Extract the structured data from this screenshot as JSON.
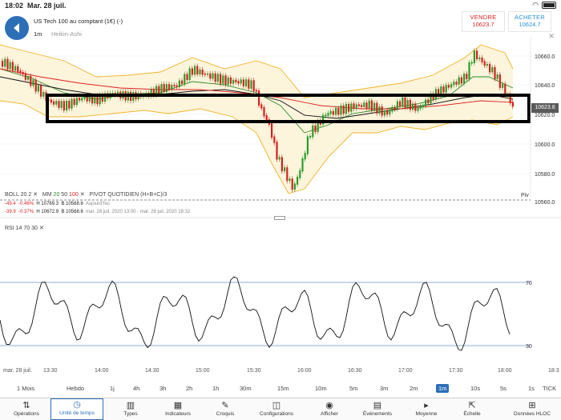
{
  "status": {
    "time": "18:02",
    "date": "Mar. 28 juil."
  },
  "instrument": {
    "name": "US Tech 100 au comptant (1€) (-)",
    "timeframe": "1m",
    "chart_type": "Heikin-Ashi"
  },
  "trade": {
    "sell_label": "VENDRE",
    "sell_price": "10623.7",
    "buy_label": "ACHETER",
    "buy_price": "10624.7"
  },
  "price_axis": {
    "labels": [
      "10660.0",
      "10640.0",
      "10620.0",
      "10600.0",
      "10580.0",
      "10560.0"
    ],
    "current": "10623.8",
    "pivot_label": "Piv"
  },
  "indicators": {
    "boll": "BOLL",
    "boll_p1": "20",
    "boll_p2": "2",
    "mm": "MM",
    "mm20": "20",
    "mm50": "50",
    "mm100": "100",
    "pivot": "PIVOT  QUOTIDIEN  (H+B+C)/3",
    "row1": {
      "chg": "-49.4",
      "pct": "-0.46%",
      "h": "H 10769.3",
      "b": "B 10568.6",
      "period": "Aujourd'hui"
    },
    "row2": {
      "chg": "-39.9",
      "pct": "-0.37%",
      "h": "H 10672.9",
      "b": "B 10568.6",
      "period": "mar. 28 juil. 2020 13:00 - mar. 28 juil. 2020 18:32"
    }
  },
  "rsi": {
    "label": "RSI  14  70  30",
    "level_high": "70",
    "level_low": "30"
  },
  "colors": {
    "accent": "#2d6fb7",
    "up": "#2a9d2a",
    "down": "#d62020",
    "band": "#f2c14e"
  },
  "xaxis": [
    "mar. 28 juil.",
    "13:30",
    "14:00",
    "14:30",
    "15:00",
    "15:30",
    "16:00",
    "16:30",
    "17:00",
    "17:30",
    "18:00",
    "18:3"
  ],
  "timeframes": [
    "1 Mois",
    "Hebdo",
    "1j",
    "4h",
    "3h",
    "2h",
    "1h",
    "30m",
    "15m",
    "10m",
    "5m",
    "3m",
    "2m",
    "1m",
    "10s",
    "5s",
    "1s",
    "TICK"
  ],
  "active_timeframe": "1m",
  "toolbar": [
    {
      "label": "Opérations",
      "icon": "swap-arrows-icon"
    },
    {
      "label": "Unité de temps",
      "icon": "clock-icon"
    },
    {
      "label": "Types",
      "icon": "candles-icon"
    },
    {
      "label": "Indicateurs",
      "icon": "indicator-icon"
    },
    {
      "label": "Croquis",
      "icon": "pencil-icon"
    },
    {
      "label": "Configurations",
      "icon": "layout-icon"
    },
    {
      "label": "Afficher",
      "icon": "eye-icon"
    },
    {
      "label": "Événements",
      "icon": "calendar-icon"
    },
    {
      "label": "Moyenne",
      "icon": "cursor-icon"
    },
    {
      "label": "Échelle",
      "icon": "scale-icon"
    },
    {
      "label": "Données HLOC",
      "icon": "data-icon"
    }
  ]
}
